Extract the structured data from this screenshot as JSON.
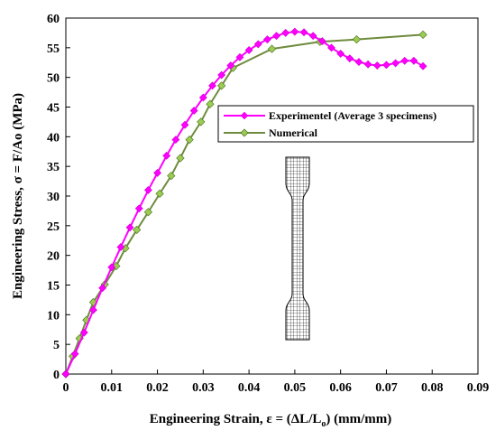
{
  "chart_data": {
    "type": "line",
    "xlabel_main": "Engineering Strain, ε = (ΔL/L",
    "xlabel_sub": "o",
    "xlabel_tail": ") (mm/mm)",
    "ylabel": "Engineering Stress, σ = F/Ao (MPa)",
    "xlim": [
      0,
      0.09
    ],
    "ylim": [
      0,
      60
    ],
    "x_ticks": [
      "0",
      "0.01",
      "0.02",
      "0.03",
      "0.04",
      "0.05",
      "0.06",
      "0.07",
      "0.08",
      "0.09"
    ],
    "y_ticks": [
      "0",
      "5",
      "10",
      "15",
      "20",
      "25",
      "30",
      "35",
      "40",
      "45",
      "50",
      "55",
      "60"
    ],
    "grid": false,
    "legend_position": "center-right",
    "series": [
      {
        "name": "Experimentel (Average 3 specimens)",
        "color": "#ff00ff",
        "marker": "diamond",
        "points": [
          [
            0,
            0
          ],
          [
            0.002,
            3.4
          ],
          [
            0.004,
            7.0
          ],
          [
            0.006,
            10.8
          ],
          [
            0.008,
            14.5
          ],
          [
            0.01,
            18.0
          ],
          [
            0.012,
            21.4
          ],
          [
            0.014,
            24.7
          ],
          [
            0.016,
            27.9
          ],
          [
            0.018,
            31.0
          ],
          [
            0.02,
            33.9
          ],
          [
            0.022,
            36.8
          ],
          [
            0.024,
            39.5
          ],
          [
            0.026,
            42.0
          ],
          [
            0.028,
            44.4
          ],
          [
            0.03,
            46.6
          ],
          [
            0.032,
            48.6
          ],
          [
            0.034,
            50.4
          ],
          [
            0.036,
            52.0
          ],
          [
            0.038,
            53.4
          ],
          [
            0.04,
            54.6
          ],
          [
            0.042,
            55.6
          ],
          [
            0.044,
            56.4
          ],
          [
            0.046,
            57.0
          ],
          [
            0.048,
            57.5
          ],
          [
            0.05,
            57.7
          ],
          [
            0.052,
            57.6
          ],
          [
            0.054,
            57.0
          ],
          [
            0.056,
            56.1
          ],
          [
            0.058,
            55.0
          ],
          [
            0.06,
            54.0
          ],
          [
            0.062,
            53.2
          ],
          [
            0.064,
            52.6
          ],
          [
            0.066,
            52.2
          ],
          [
            0.068,
            52.0
          ],
          [
            0.07,
            52.1
          ],
          [
            0.072,
            52.4
          ],
          [
            0.074,
            52.8
          ],
          [
            0.076,
            52.8
          ],
          [
            0.078,
            51.9
          ]
        ]
      },
      {
        "name": "Numerical",
        "color": "#6e8b3d",
        "marker": "diamond",
        "points": [
          [
            0,
            0
          ],
          [
            0.0015,
            3.0
          ],
          [
            0.003,
            6.0
          ],
          [
            0.0045,
            9.1
          ],
          [
            0.006,
            12.1
          ],
          [
            0.0085,
            15.1
          ],
          [
            0.011,
            18.2
          ],
          [
            0.013,
            21.2
          ],
          [
            0.0155,
            24.3
          ],
          [
            0.018,
            27.3
          ],
          [
            0.0205,
            30.4
          ],
          [
            0.023,
            33.4
          ],
          [
            0.025,
            36.4
          ],
          [
            0.027,
            39.5
          ],
          [
            0.0295,
            42.5
          ],
          [
            0.0315,
            45.5
          ],
          [
            0.034,
            48.6
          ],
          [
            0.0365,
            51.6
          ],
          [
            0.045,
            54.8
          ],
          [
            0.0555,
            56.0
          ],
          [
            0.0635,
            56.4
          ],
          [
            0.078,
            57.2
          ]
        ]
      }
    ]
  },
  "inset": {
    "icon": "dogbone-mesh-specimen"
  }
}
